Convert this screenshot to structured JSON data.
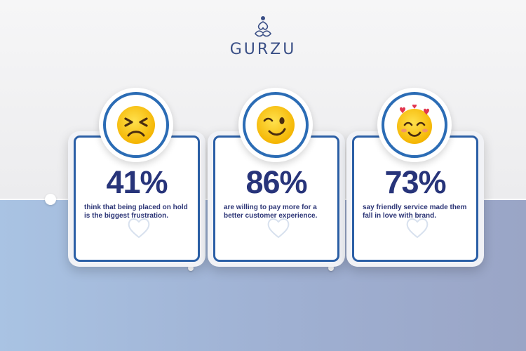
{
  "brand": {
    "name": "GURZU",
    "color": "#3a4f86",
    "logo_icon": "meditation-figure-icon"
  },
  "colors": {
    "ring": "#2b6cb5",
    "frame": "#2b5fa6",
    "stat_text": "#27347a"
  },
  "cards": [
    {
      "emoji": "persevering-face-emoji",
      "percent": "41%",
      "text": "think that being placed on hold is the biggest frustration."
    },
    {
      "emoji": "winking-face-emoji",
      "percent": "86%",
      "text": "are willing to pay more for a better customer experience."
    },
    {
      "emoji": "smiling-face-with-hearts-emoji",
      "percent": "73%",
      "text": "say friendly service made them fall in love with brand."
    }
  ]
}
